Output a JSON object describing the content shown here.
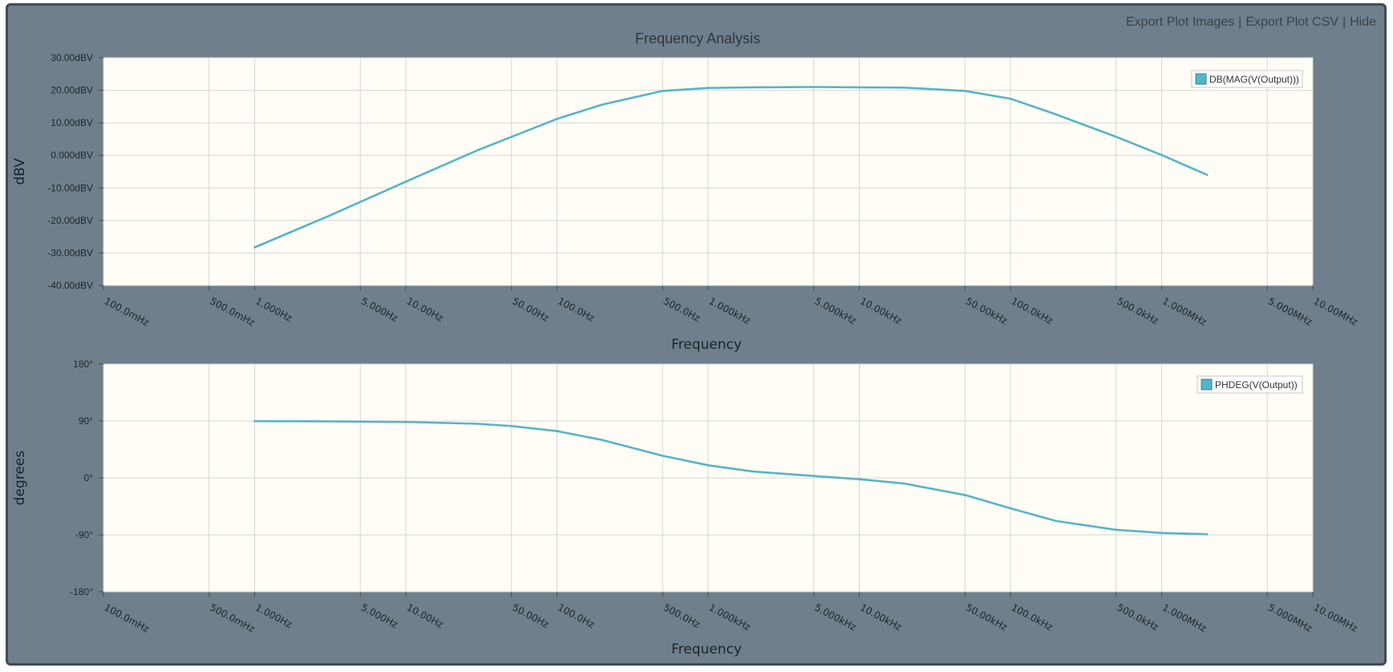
{
  "toolbar": {
    "export_images": "Export Plot Images",
    "export_csv": "Export Plot CSV",
    "hide": "Hide",
    "separator": "|"
  },
  "title": "Frequency Analysis",
  "colors": {
    "series": "#56b4c8",
    "plot_bg": "#fffdf5",
    "panel_bg": "#6f808c",
    "grid": "#d6d6d6"
  },
  "chart_data": [
    {
      "type": "line",
      "title": "Frequency Analysis",
      "xlabel": "Frequency",
      "ylabel": "dBV",
      "xscale": "log",
      "xlim": [
        0.1,
        10000000
      ],
      "ylim": [
        -40,
        30
      ],
      "grid": true,
      "legend": "top-right",
      "x_ticks": [
        {
          "v": 0.1,
          "label": "100.0mHz"
        },
        {
          "v": 0.5,
          "label": "500.0mHz"
        },
        {
          "v": 1,
          "label": "1.000Hz"
        },
        {
          "v": 5,
          "label": "5.000Hz"
        },
        {
          "v": 10,
          "label": "10.00Hz"
        },
        {
          "v": 50,
          "label": "50.00Hz"
        },
        {
          "v": 100,
          "label": "100.0Hz"
        },
        {
          "v": 500,
          "label": "500.0Hz"
        },
        {
          "v": 1000,
          "label": "1.000kHz"
        },
        {
          "v": 5000,
          "label": "5.000kHz"
        },
        {
          "v": 10000,
          "label": "10.00kHz"
        },
        {
          "v": 50000,
          "label": "50.00kHz"
        },
        {
          "v": 100000,
          "label": "100.0kHz"
        },
        {
          "v": 500000,
          "label": "500.0kHz"
        },
        {
          "v": 1000000,
          "label": "1.000MHz"
        },
        {
          "v": 5000000,
          "label": "5.000MHz"
        },
        {
          "v": 10000000,
          "label": "10.00MHz"
        }
      ],
      "y_ticks": [
        {
          "v": 30,
          "label": "30.00dBV"
        },
        {
          "v": 20,
          "label": "20.00dBV"
        },
        {
          "v": 10,
          "label": "10.00dBV"
        },
        {
          "v": 0,
          "label": "0.000dBV"
        },
        {
          "v": -10,
          "label": "-10.00dBV"
        },
        {
          "v": -20,
          "label": "-20.00dBV"
        },
        {
          "v": -30,
          "label": "-30.00dBV"
        },
        {
          "v": -40,
          "label": "-40.00dBV"
        }
      ],
      "series": [
        {
          "name": "DB(MAG(V(Output)))",
          "x": [
            1,
            3,
            10,
            30,
            100,
            200,
            500,
            1000,
            2000,
            5000,
            10000,
            20000,
            50000,
            100000,
            200000,
            500000,
            1000000,
            2000000
          ],
          "y": [
            -28.3,
            -18.9,
            -8.1,
            1.6,
            11.2,
            15.6,
            19.8,
            20.7,
            20.9,
            21.0,
            20.9,
            20.8,
            19.8,
            17.4,
            12.6,
            5.7,
            0.1,
            -6.0
          ]
        }
      ]
    },
    {
      "type": "line",
      "title": "",
      "xlabel": "Frequency",
      "ylabel": "degrees",
      "xscale": "log",
      "xlim": [
        0.1,
        10000000
      ],
      "ylim": [
        -180,
        180
      ],
      "grid": true,
      "legend": "top-right",
      "x_ticks": [
        {
          "v": 0.1,
          "label": "100.0mHz"
        },
        {
          "v": 0.5,
          "label": "500.0mHz"
        },
        {
          "v": 1,
          "label": "1.000Hz"
        },
        {
          "v": 5,
          "label": "5.000Hz"
        },
        {
          "v": 10,
          "label": "10.00Hz"
        },
        {
          "v": 50,
          "label": "50.00Hz"
        },
        {
          "v": 100,
          "label": "100.0Hz"
        },
        {
          "v": 500,
          "label": "500.0Hz"
        },
        {
          "v": 1000,
          "label": "1.000kHz"
        },
        {
          "v": 5000,
          "label": "5.000kHz"
        },
        {
          "v": 10000,
          "label": "10.00kHz"
        },
        {
          "v": 50000,
          "label": "50.00kHz"
        },
        {
          "v": 100000,
          "label": "100.0kHz"
        },
        {
          "v": 500000,
          "label": "500.0kHz"
        },
        {
          "v": 1000000,
          "label": "1.000MHz"
        },
        {
          "v": 5000000,
          "label": "5.000MHz"
        },
        {
          "v": 10000000,
          "label": "10.00MHz"
        }
      ],
      "y_ticks": [
        {
          "v": 180,
          "label": "180°"
        },
        {
          "v": 90,
          "label": "90°"
        },
        {
          "v": 0,
          "label": "0°"
        },
        {
          "v": -90,
          "label": "-90°"
        },
        {
          "v": -180,
          "label": "-180°"
        }
      ],
      "series": [
        {
          "name": "PHDEG(V(Output))",
          "x": [
            1,
            3,
            10,
            30,
            50,
            100,
            200,
            500,
            1000,
            2000,
            5000,
            10000,
            20000,
            50000,
            100000,
            200000,
            500000,
            1000000,
            2000000
          ],
          "y": [
            89.8,
            89.5,
            88.5,
            85.5,
            82.0,
            74.0,
            60.0,
            35.0,
            20.0,
            10.0,
            3.0,
            -2.0,
            -9.0,
            -27.0,
            -48.0,
            -68.0,
            -82.0,
            -87.0,
            -89.0
          ]
        }
      ]
    }
  ]
}
